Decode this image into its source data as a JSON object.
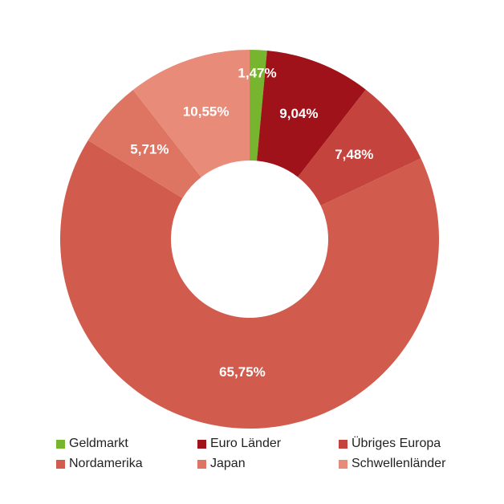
{
  "chart_data": {
    "type": "pie",
    "donut": true,
    "legend_position": "bottom",
    "series": [
      {
        "name": "Geldmarkt",
        "value": 1.47,
        "label": "1,47%",
        "color": "#76b52d"
      },
      {
        "name": "Euro Länder",
        "value": 9.04,
        "label": "9,04%",
        "color": "#a01219"
      },
      {
        "name": "Übriges Europa",
        "value": 7.48,
        "label": "7,48%",
        "color": "#c4433c"
      },
      {
        "name": "Nordamerika",
        "value": 65.75,
        "label": "65,75%",
        "color": "#d15b4c"
      },
      {
        "name": "Japan",
        "value": 5.71,
        "label": "5,71%",
        "color": "#de7563"
      },
      {
        "name": "Schwellenländer",
        "value": 10.55,
        "label": "10,55%",
        "color": "#e88b78"
      }
    ]
  }
}
